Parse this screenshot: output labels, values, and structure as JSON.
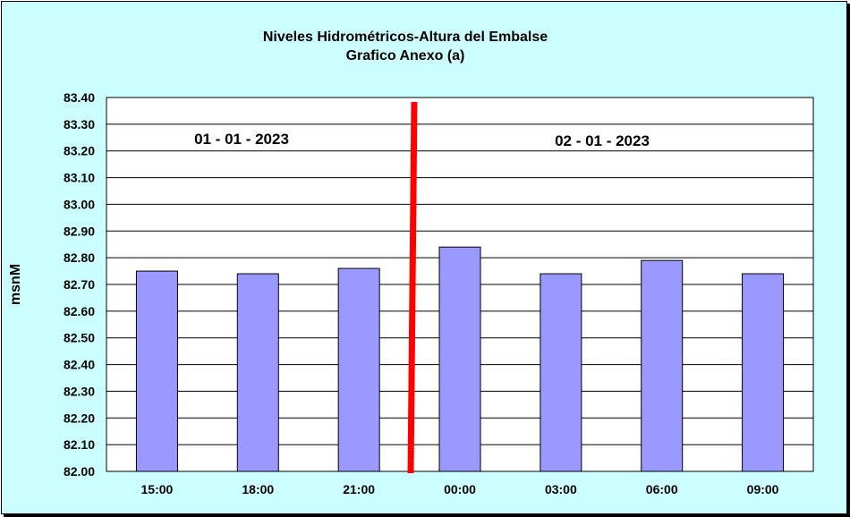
{
  "chart_data": {
    "type": "bar",
    "title": "Niveles Hidrométricos-Altura del Embalse",
    "subtitle": "Grafico Anexo (a)",
    "xlabel": "",
    "ylabel": "msnM",
    "categories": [
      "15:00",
      "18:00",
      "21:00",
      "00:00",
      "03:00",
      "06:00",
      "09:00"
    ],
    "values": [
      82.75,
      82.74,
      82.76,
      82.84,
      82.74,
      82.79,
      82.74
    ],
    "ylim": [
      82.0,
      83.4
    ],
    "yticks": [
      "82.00",
      "82.10",
      "82.20",
      "82.30",
      "82.40",
      "82.50",
      "82.60",
      "82.70",
      "82.80",
      "82.90",
      "83.00",
      "83.10",
      "83.20",
      "83.30",
      "83.40"
    ],
    "grid": true,
    "legend": "none",
    "annotations": {
      "day1": "01 - 01 - 2023",
      "day2": "02 - 01 - 2023"
    },
    "colors": {
      "background": "#ccffff",
      "plot_area": "#ffffff",
      "bar_fill": "#9999ff",
      "bar_stroke": "#000000",
      "divider": "#ff0000"
    }
  }
}
